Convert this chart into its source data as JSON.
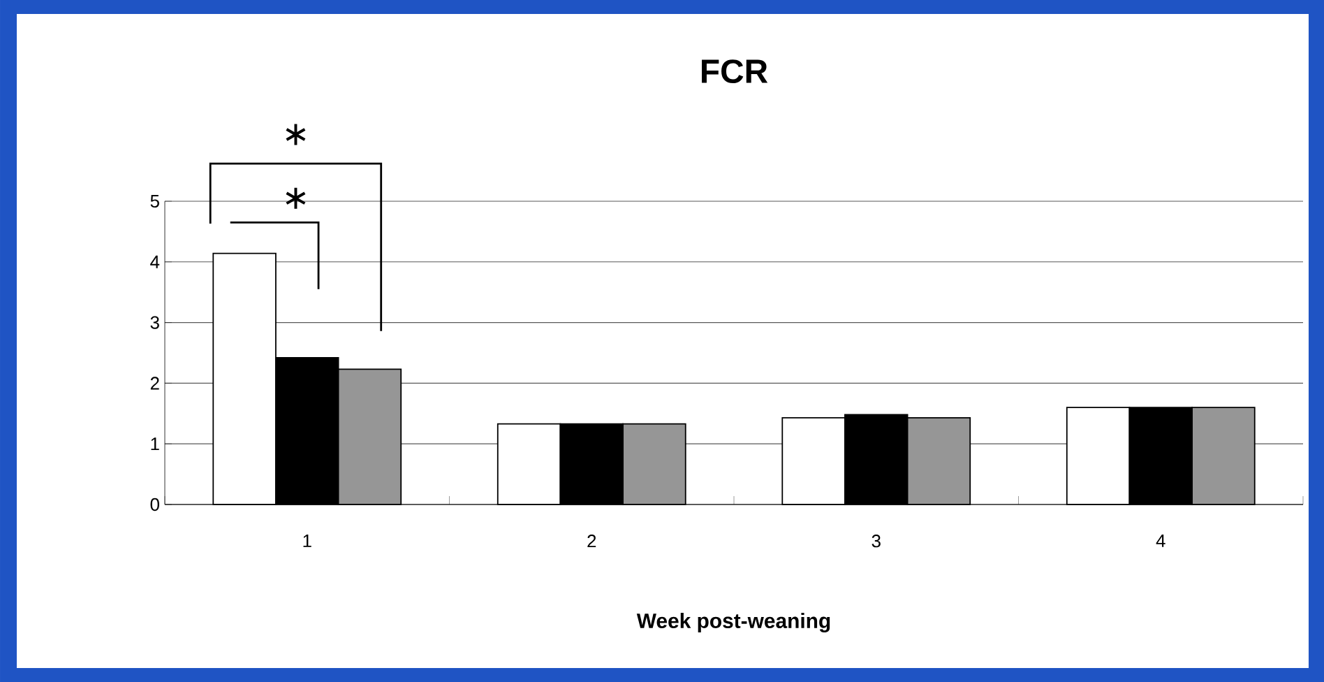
{
  "chart_data": {
    "type": "bar",
    "title": "FCR",
    "xlabel": "Week post-weaning",
    "categories": [
      "1",
      "2",
      "3",
      "4"
    ],
    "series": [
      {
        "color": "#ffffff",
        "values": [
          4.14,
          1.33,
          1.43,
          1.6
        ]
      },
      {
        "color": "#000000",
        "values": [
          2.42,
          1.33,
          1.48,
          1.6
        ]
      },
      {
        "color": "#969696",
        "values": [
          2.23,
          1.33,
          1.43,
          1.6
        ]
      }
    ],
    "ylim": [
      0,
      5
    ],
    "yticks": [
      0,
      1,
      2,
      3,
      4,
      5
    ],
    "grid": "y",
    "annotations": [
      "∗",
      "∗"
    ]
  }
}
